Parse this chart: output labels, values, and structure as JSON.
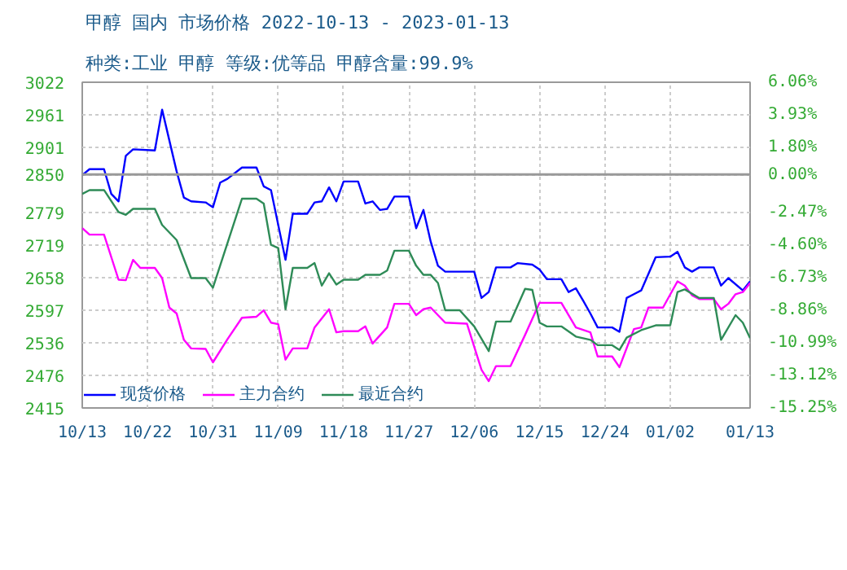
{
  "chart_data": {
    "type": "line",
    "title": "甲醇 国内 市场价格 2022-10-13 - 2023-01-13",
    "subtitle": "种类:工业 甲醇 等级:优等品 甲醇含量:99.9%",
    "xlim": [
      "2022-10-13",
      "2023-01-13"
    ],
    "xticks": [
      {
        "value": "2022-10-13",
        "label": "10/13"
      },
      {
        "value": "2022-10-22",
        "label": "10/22"
      },
      {
        "value": "2022-10-31",
        "label": "10/31"
      },
      {
        "value": "2022-11-09",
        "label": "11/09"
      },
      {
        "value": "2022-11-18",
        "label": "11/18"
      },
      {
        "value": "2022-11-27",
        "label": "11/27"
      },
      {
        "value": "2022-12-06",
        "label": "12/06"
      },
      {
        "value": "2022-12-15",
        "label": "12/15"
      },
      {
        "value": "2022-12-24",
        "label": "12/24"
      },
      {
        "value": "2023-01-02",
        "label": "01/02"
      },
      {
        "value": "2023-01-13",
        "label": "01/13"
      }
    ],
    "ylim": [
      2415,
      3022
    ],
    "yticks": [
      2415,
      2476,
      2536,
      2597,
      2658,
      2719,
      2779,
      2850,
      2901,
      2961,
      3022
    ],
    "y2lim": [
      -15.25,
      6.06
    ],
    "y2ticks": [
      {
        "value": -15.25,
        "label": "-15.25%"
      },
      {
        "value": -13.12,
        "label": "-13.12%"
      },
      {
        "value": -10.99,
        "label": "-10.99%"
      },
      {
        "value": -8.86,
        "label": "-8.86%"
      },
      {
        "value": -6.73,
        "label": "-6.73%"
      },
      {
        "value": -4.6,
        "label": "-4.60%"
      },
      {
        "value": -2.47,
        "label": "-2.47%"
      },
      {
        "value": 0,
        "label": "0.00%"
      },
      {
        "value": 1.8,
        "label": "1.80%"
      },
      {
        "value": 3.93,
        "label": "3.93%"
      },
      {
        "value": 6.06,
        "label": "6.06%"
      }
    ],
    "ref_lines": [
      {
        "axis": "y",
        "value": 2850,
        "color": "#999999"
      }
    ],
    "grid": true,
    "legend": "bottom left",
    "line_style": "solid",
    "marker": "none",
    "series": [
      {
        "name": "现货价格",
        "color": "#0000ff",
        "x": [
          "2022-10-13",
          "2022-10-14",
          "2022-10-16",
          "2022-10-17",
          "2022-10-18",
          "2022-10-19",
          "2022-10-20",
          "2022-10-23",
          "2022-10-24",
          "2022-10-26",
          "2022-10-27",
          "2022-10-28",
          "2022-10-30",
          "2022-10-31",
          "2022-11-01",
          "2022-11-02",
          "2022-11-04",
          "2022-11-06",
          "2022-11-07",
          "2022-11-08",
          "2022-11-10",
          "2022-11-11",
          "2022-11-13",
          "2022-11-14",
          "2022-11-15",
          "2022-11-16",
          "2022-11-17",
          "2022-11-18",
          "2022-11-20",
          "2022-11-21",
          "2022-11-22",
          "2022-11-23",
          "2022-11-24",
          "2022-11-25",
          "2022-11-27",
          "2022-11-28",
          "2022-11-29",
          "2022-11-30",
          "2022-12-01",
          "2022-12-02",
          "2022-12-06",
          "2022-12-07",
          "2022-12-08",
          "2022-12-09",
          "2022-12-11",
          "2022-12-12",
          "2022-12-14",
          "2022-12-15",
          "2022-12-16",
          "2022-12-18",
          "2022-12-19",
          "2022-12-20",
          "2022-12-21",
          "2022-12-22",
          "2022-12-23",
          "2022-12-25",
          "2022-12-26",
          "2022-12-27",
          "2022-12-28",
          "2022-12-29",
          "2022-12-31",
          "2023-01-02",
          "2023-01-03",
          "2023-01-04",
          "2023-01-05",
          "2023-01-06",
          "2023-01-08",
          "2023-01-09",
          "2023-01-10",
          "2023-01-12",
          "2023-01-13"
        ],
        "values": [
          2849,
          2860,
          2860,
          2814,
          2800,
          2885,
          2897,
          2895,
          2971,
          2856,
          2807,
          2800,
          2798,
          2789,
          2835,
          2842,
          2863,
          2863,
          2828,
          2821,
          2691,
          2777,
          2777,
          2798,
          2800,
          2826,
          2800,
          2837,
          2837,
          2796,
          2800,
          2784,
          2786,
          2809,
          2809,
          2750,
          2784,
          2725,
          2680,
          2669,
          2669,
          2620,
          2631,
          2677,
          2677,
          2685,
          2682,
          2673,
          2655,
          2655,
          2631,
          2638,
          2615,
          2591,
          2565,
          2565,
          2557,
          2620,
          2627,
          2634,
          2696,
          2697,
          2706,
          2677,
          2669,
          2677,
          2677,
          2643,
          2657,
          2634,
          2651
        ]
      },
      {
        "name": "主力合约",
        "color": "#ff00ff",
        "x": [
          "2022-10-13",
          "2022-10-14",
          "2022-10-16",
          "2022-10-18",
          "2022-10-19",
          "2022-10-20",
          "2022-10-21",
          "2022-10-23",
          "2022-10-24",
          "2022-10-25",
          "2022-10-26",
          "2022-10-27",
          "2022-10-28",
          "2022-10-30",
          "2022-10-31",
          "2022-11-02",
          "2022-11-04",
          "2022-11-06",
          "2022-11-07",
          "2022-11-08",
          "2022-11-09",
          "2022-11-10",
          "2022-11-11",
          "2022-11-13",
          "2022-11-14",
          "2022-11-16",
          "2022-11-17",
          "2022-11-18",
          "2022-11-20",
          "2022-11-21",
          "2022-11-22",
          "2022-11-24",
          "2022-11-25",
          "2022-11-27",
          "2022-11-28",
          "2022-11-29",
          "2022-11-30",
          "2022-12-02",
          "2022-12-05",
          "2022-12-07",
          "2022-12-08",
          "2022-12-09",
          "2022-12-11",
          "2022-12-13",
          "2022-12-15",
          "2022-12-18",
          "2022-12-20",
          "2022-12-22",
          "2022-12-23",
          "2022-12-25",
          "2022-12-26",
          "2022-12-28",
          "2022-12-29",
          "2022-12-30",
          "2023-01-01",
          "2023-01-03",
          "2023-01-04",
          "2023-01-05",
          "2023-01-06",
          "2023-01-08",
          "2023-01-09",
          "2023-01-10",
          "2023-01-11",
          "2023-01-12",
          "2023-01-13"
        ],
        "values": [
          2750,
          2738,
          2738,
          2654,
          2653,
          2691,
          2676,
          2676,
          2657,
          2602,
          2591,
          2542,
          2526,
          2525,
          2500,
          2543,
          2583,
          2585,
          2597,
          2574,
          2571,
          2505,
          2526,
          2526,
          2565,
          2599,
          2556,
          2558,
          2558,
          2567,
          2535,
          2565,
          2609,
          2609,
          2588,
          2599,
          2602,
          2574,
          2572,
          2486,
          2465,
          2493,
          2493,
          2551,
          2611,
          2611,
          2565,
          2556,
          2511,
          2511,
          2491,
          2562,
          2565,
          2602,
          2602,
          2651,
          2643,
          2625,
          2618,
          2618,
          2599,
          2609,
          2627,
          2631,
          2648
        ]
      },
      {
        "name": "最近合约",
        "color": "#2e8b57",
        "x": [
          "2022-10-13",
          "2022-10-14",
          "2022-10-16",
          "2022-10-18",
          "2022-10-19",
          "2022-10-20",
          "2022-10-23",
          "2022-10-24",
          "2022-10-26",
          "2022-10-28",
          "2022-10-30",
          "2022-10-31",
          "2022-11-04",
          "2022-11-06",
          "2022-11-07",
          "2022-11-08",
          "2022-11-09",
          "2022-11-10",
          "2022-11-11",
          "2022-11-13",
          "2022-11-14",
          "2022-11-15",
          "2022-11-16",
          "2022-11-17",
          "2022-11-18",
          "2022-11-20",
          "2022-11-21",
          "2022-11-23",
          "2022-11-24",
          "2022-11-25",
          "2022-11-27",
          "2022-11-28",
          "2022-11-29",
          "2022-11-30",
          "2022-12-01",
          "2022-12-02",
          "2022-12-04",
          "2022-12-06",
          "2022-12-08",
          "2022-12-09",
          "2022-12-11",
          "2022-12-13",
          "2022-12-14",
          "2022-12-15",
          "2022-12-16",
          "2022-12-18",
          "2022-12-20",
          "2022-12-22",
          "2022-12-23",
          "2022-12-25",
          "2022-12-26",
          "2022-12-27",
          "2022-12-29",
          "2022-12-31",
          "2023-01-02",
          "2023-01-03",
          "2023-01-04",
          "2023-01-06",
          "2023-01-08",
          "2023-01-09",
          "2023-01-11",
          "2023-01-12",
          "2023-01-13"
        ],
        "values": [
          2814,
          2821,
          2821,
          2780,
          2775,
          2786,
          2786,
          2756,
          2728,
          2657,
          2657,
          2639,
          2805,
          2805,
          2796,
          2719,
          2713,
          2599,
          2676,
          2676,
          2685,
          2643,
          2666,
          2645,
          2654,
          2654,
          2663,
          2663,
          2671,
          2708,
          2708,
          2680,
          2663,
          2663,
          2648,
          2597,
          2597,
          2567,
          2521,
          2576,
          2576,
          2637,
          2635,
          2574,
          2567,
          2567,
          2548,
          2542,
          2532,
          2532,
          2523,
          2546,
          2560,
          2569,
          2569,
          2631,
          2636,
          2620,
          2620,
          2542,
          2588,
          2574,
          2545
        ]
      }
    ]
  }
}
